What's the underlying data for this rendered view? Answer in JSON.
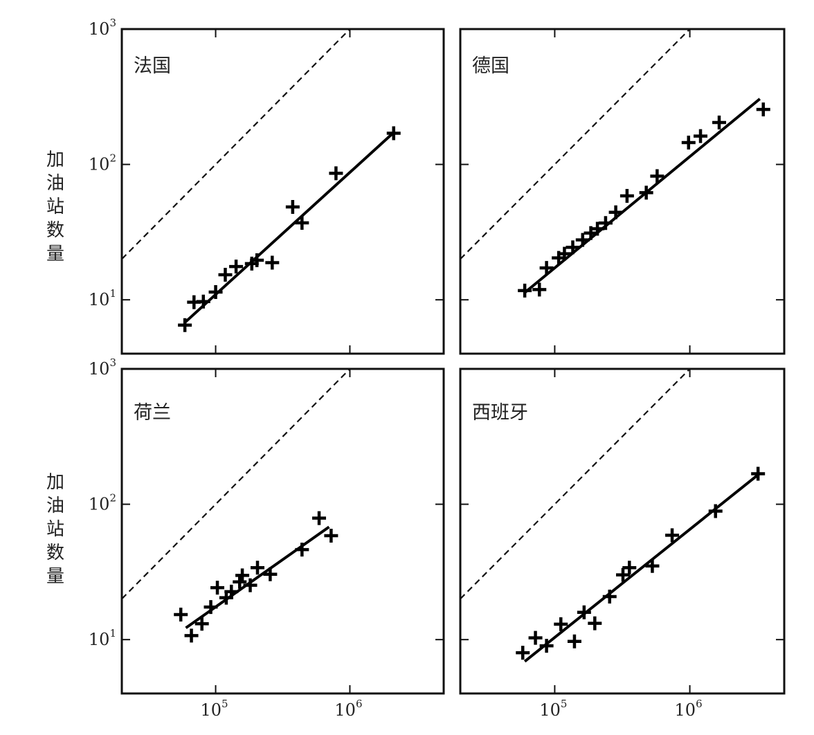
{
  "ylabel": "加油站数量",
  "chart_data": [
    {
      "type": "scatter",
      "title": "法国",
      "xscale": "log",
      "yscale": "log",
      "xlim": [
        20000,
        5000000
      ],
      "ylim": [
        4,
        1000
      ],
      "xticks": [
        {
          "value": 100000,
          "base": "10",
          "exp": "5"
        },
        {
          "value": 1000000,
          "base": "10",
          "exp": "6"
        }
      ],
      "yticks": [
        {
          "value": 10,
          "base": "10",
          "exp": "1"
        },
        {
          "value": 100,
          "base": "10",
          "exp": "2"
        },
        {
          "value": 1000,
          "base": "10",
          "exp": "3"
        }
      ],
      "points": [
        [
          59000,
          6.5
        ],
        [
          69000,
          9.6
        ],
        [
          81000,
          9.7
        ],
        [
          100000,
          11.4
        ],
        [
          118000,
          15.3
        ],
        [
          142000,
          17.6
        ],
        [
          186000,
          18.5
        ],
        [
          203000,
          19.6
        ],
        [
          264000,
          18.8
        ],
        [
          375000,
          48.5
        ],
        [
          440000,
          37
        ],
        [
          788000,
          86
        ],
        [
          2120000,
          170
        ]
      ],
      "fit": [
        [
          59000,
          6.8
        ],
        [
          2120000,
          172
        ]
      ],
      "reference_line": "y = x / 1000",
      "grid": false
    },
    {
      "type": "scatter",
      "title": "德国",
      "xscale": "log",
      "yscale": "log",
      "xlim": [
        20000,
        5000000
      ],
      "ylim": [
        4,
        1000
      ],
      "xticks": [
        {
          "value": 100000,
          "base": "10",
          "exp": "5"
        },
        {
          "value": 1000000,
          "base": "10",
          "exp": "6"
        }
      ],
      "yticks": [
        {
          "value": 10,
          "base": "10",
          "exp": "1"
        },
        {
          "value": 100,
          "base": "10",
          "exp": "2"
        },
        {
          "value": 1000,
          "base": "10",
          "exp": "3"
        }
      ],
      "points": [
        [
          60000,
          11.7
        ],
        [
          77000,
          11.9
        ],
        [
          87000,
          17.2
        ],
        [
          107000,
          20.4
        ],
        [
          118000,
          21.9
        ],
        [
          136000,
          24.4
        ],
        [
          161000,
          27.7
        ],
        [
          185000,
          31.1
        ],
        [
          207000,
          33.5
        ],
        [
          238000,
          36.9
        ],
        [
          283000,
          44.3
        ],
        [
          343000,
          58.6
        ],
        [
          476000,
          61.9
        ],
        [
          573000,
          82
        ],
        [
          979000,
          145
        ],
        [
          1200000,
          162
        ],
        [
          1650000,
          204
        ],
        [
          3500000,
          255
        ]
      ],
      "fit": [
        [
          60000,
          11.3
        ],
        [
          3300000,
          305
        ]
      ],
      "reference_line": "y = x / 1000",
      "grid": false
    },
    {
      "type": "scatter",
      "title": "荷兰",
      "xscale": "log",
      "yscale": "log",
      "xlim": [
        20000,
        5000000
      ],
      "ylim": [
        4,
        1000
      ],
      "xticks": [
        {
          "value": 100000,
          "base": "10",
          "exp": "5"
        },
        {
          "value": 1000000,
          "base": "10",
          "exp": "6"
        }
      ],
      "yticks": [
        {
          "value": 10,
          "base": "10",
          "exp": "1"
        },
        {
          "value": 100,
          "base": "10",
          "exp": "2"
        },
        {
          "value": 1000,
          "base": "10",
          "exp": "3"
        }
      ],
      "points": [
        [
          55000,
          15.3
        ],
        [
          66000,
          10.7
        ],
        [
          79000,
          13.1
        ],
        [
          92000,
          17.4
        ],
        [
          103000,
          24.2
        ],
        [
          120000,
          20.4
        ],
        [
          131000,
          22.6
        ],
        [
          151000,
          26.7
        ],
        [
          158000,
          29.8
        ],
        [
          181000,
          25.2
        ],
        [
          205000,
          34
        ],
        [
          255000,
          30.4
        ],
        [
          440000,
          46.2
        ],
        [
          590000,
          79
        ],
        [
          725000,
          58.6
        ]
      ],
      "fit": [
        [
          60000,
          12.2
        ],
        [
          700000,
          68
        ]
      ],
      "reference_line": "y = x / 1000",
      "grid": false
    },
    {
      "type": "scatter",
      "title": "西班牙",
      "xscale": "log",
      "yscale": "log",
      "xlim": [
        20000,
        5000000
      ],
      "ylim": [
        4,
        1000
      ],
      "xticks": [
        {
          "value": 100000,
          "base": "10",
          "exp": "5"
        },
        {
          "value": 1000000,
          "base": "10",
          "exp": "6"
        }
      ],
      "yticks": [
        {
          "value": 10,
          "base": "10",
          "exp": "1"
        },
        {
          "value": 100,
          "base": "10",
          "exp": "2"
        },
        {
          "value": 1000,
          "base": "10",
          "exp": "3"
        }
      ],
      "points": [
        [
          58000,
          8
        ],
        [
          72000,
          10.3
        ],
        [
          87000,
          9
        ],
        [
          111000,
          13
        ],
        [
          140000,
          9.7
        ],
        [
          165000,
          15.9
        ],
        [
          198000,
          13.2
        ],
        [
          255000,
          20.8
        ],
        [
          320000,
          30.1
        ],
        [
          357000,
          34
        ],
        [
          528000,
          35
        ],
        [
          740000,
          59
        ],
        [
          1550000,
          89
        ],
        [
          3200000,
          168
        ]
      ],
      "fit": [
        [
          60000,
          6.9
        ],
        [
          3150000,
          163
        ]
      ],
      "reference_line": "y = x / 1000",
      "grid": false
    }
  ]
}
